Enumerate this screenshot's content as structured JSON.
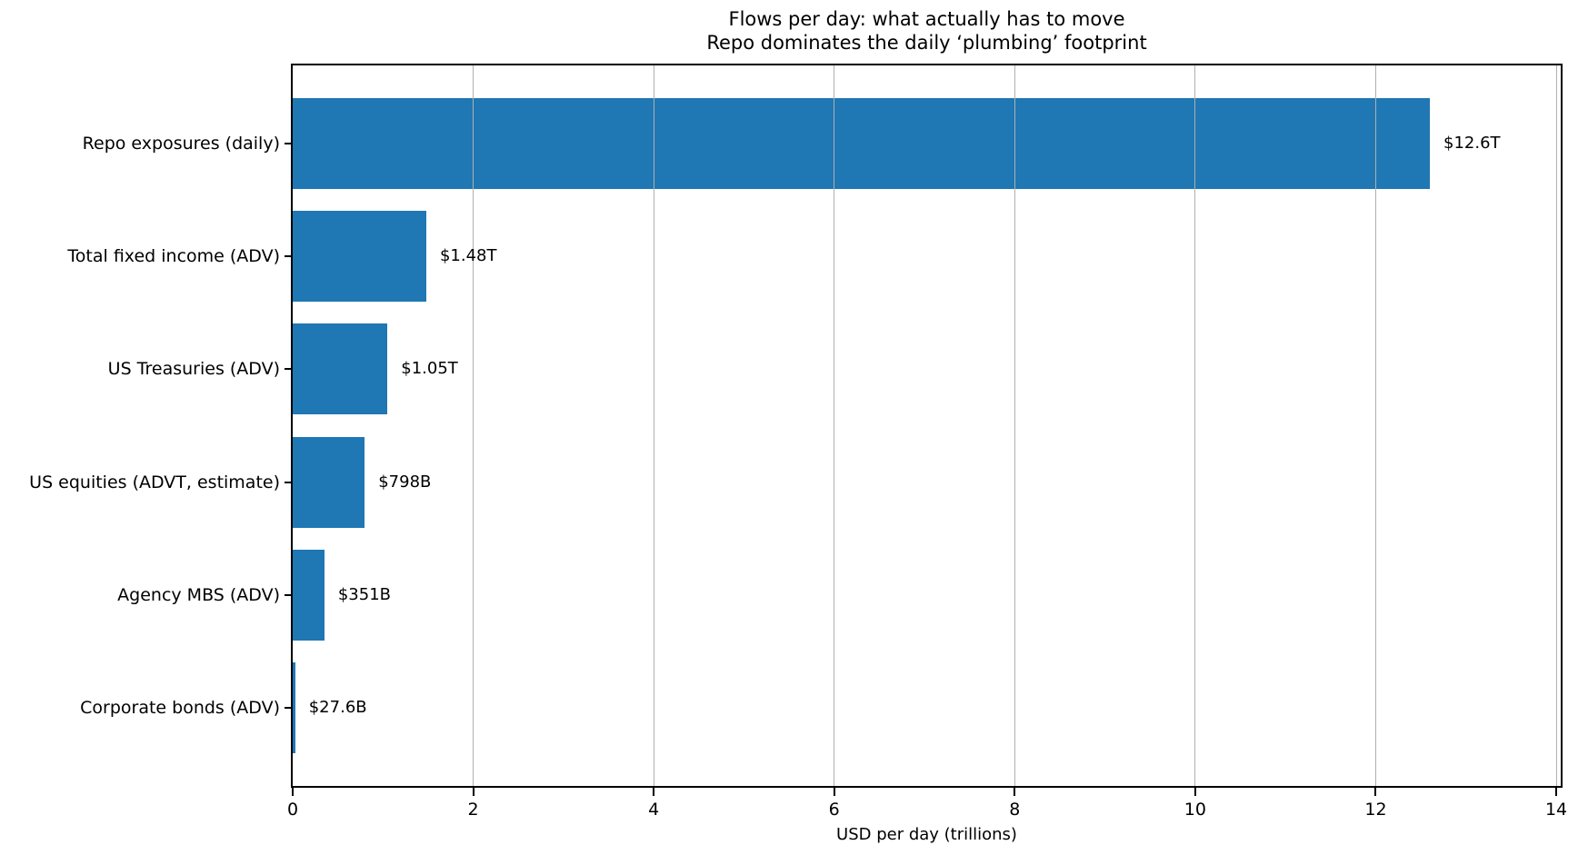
{
  "chart_data": {
    "type": "bar",
    "orientation": "horizontal",
    "title": "Flows per day: what actually has to move",
    "subtitle": "Repo dominates the daily ‘plumbing’ footprint",
    "categories": [
      "Repo exposures (daily)",
      "Total fixed income (ADV)",
      "US Treasuries (ADV)",
      "US equities (ADVT, estimate)",
      "Agency MBS (ADV)",
      "Corporate bonds (ADV)"
    ],
    "values": [
      12.6,
      1.48,
      1.05,
      0.798,
      0.351,
      0.0276
    ],
    "value_labels": [
      "$12.6T",
      "$1.48T",
      "$1.05T",
      "$798B",
      "$351B",
      "$27.6B"
    ],
    "xlabel": "USD per day (trillions)",
    "x_ticks": [
      0,
      2,
      4,
      6,
      8,
      10,
      12,
      14
    ],
    "x_tick_labels": [
      "0",
      "2",
      "4",
      "6",
      "8",
      "10",
      "12",
      "14"
    ],
    "xlim": [
      0,
      14.05
    ],
    "grid": true,
    "legend_position": "none",
    "bar_color": "#1f77b4",
    "grid_color": "#b0b0b0",
    "frame_color": "#000000",
    "background_color": "#ffffff"
  }
}
